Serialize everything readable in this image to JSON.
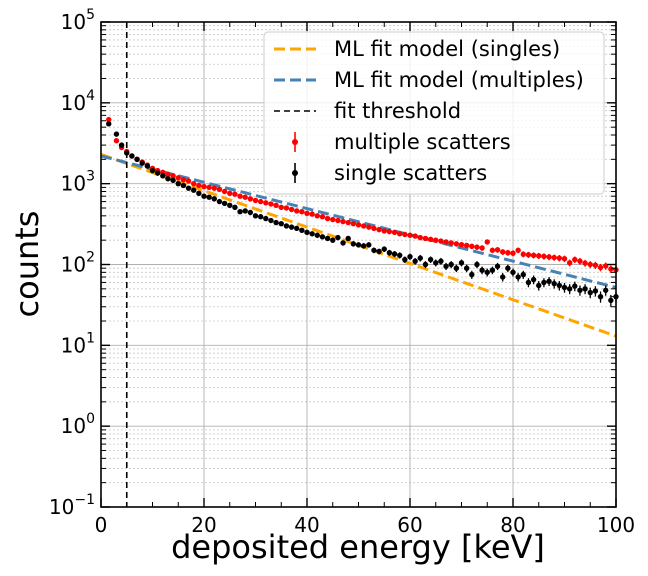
{
  "chart_data": {
    "type": "scatter",
    "xlabel": "deposited energy [keV]",
    "ylabel": "counts",
    "xlim": [
      0,
      100
    ],
    "ylim": [
      0.1,
      100000
    ],
    "y_scale": "log",
    "grid": "major and minor",
    "legend_position": "top-right",
    "x_ticks": [
      {
        "value": 0,
        "label": "0"
      },
      {
        "value": 20,
        "label": "20"
      },
      {
        "value": 40,
        "label": "40"
      },
      {
        "value": 60,
        "label": "60"
      },
      {
        "value": 80,
        "label": "80"
      },
      {
        "value": 100,
        "label": "100"
      }
    ],
    "y_ticks": [
      {
        "value": 0.1,
        "base": "10",
        "exp": "−1"
      },
      {
        "value": 1,
        "base": "10",
        "exp": "0"
      },
      {
        "value": 10,
        "base": "10",
        "exp": "1"
      },
      {
        "value": 100,
        "base": "10",
        "exp": "2"
      },
      {
        "value": 1000,
        "base": "10",
        "exp": "3"
      },
      {
        "value": 10000,
        "base": "10",
        "exp": "4"
      },
      {
        "value": 100000,
        "base": "10",
        "exp": "5"
      }
    ],
    "threshold": {
      "name": "fit threshold",
      "x": 5,
      "color": "#000000"
    },
    "fit_lines": [
      {
        "name": "ML fit model (singles)",
        "color": "#ffa500",
        "x": [
          0,
          100
        ],
        "y": [
          2300,
          13
        ]
      },
      {
        "name": "ML fit model (multiples)",
        "color": "#4682b4",
        "x": [
          0,
          100
        ],
        "y": [
          2200,
          52
        ]
      }
    ],
    "series": [
      {
        "name": "multiple scatters",
        "color": "#ff0000",
        "x": [
          1.5,
          3,
          4,
          5,
          6,
          7,
          8,
          9,
          10,
          11,
          12,
          13,
          14,
          15,
          16,
          17,
          18,
          19,
          20,
          21,
          22,
          23,
          24,
          25,
          26,
          27,
          28,
          29,
          30,
          31,
          32,
          33,
          34,
          35,
          36,
          37,
          38,
          39,
          40,
          41,
          42,
          43,
          44,
          45,
          46,
          47,
          48,
          49,
          50,
          51,
          52,
          53,
          54,
          55,
          56,
          57,
          58,
          59,
          60,
          61,
          62,
          63,
          64,
          65,
          66,
          67,
          68,
          69,
          70,
          71,
          72,
          73,
          74,
          75,
          76,
          77,
          78,
          79,
          80,
          81,
          82,
          83,
          84,
          85,
          86,
          87,
          88,
          89,
          90,
          91,
          92,
          93,
          94,
          95,
          96,
          97,
          98,
          99,
          100
        ],
        "y": [
          6200,
          3400,
          2800,
          2500,
          2200,
          2000,
          1850,
          1700,
          1550,
          1450,
          1380,
          1300,
          1250,
          1180,
          1120,
          1080,
          1000,
          950,
          920,
          900,
          880,
          850,
          800,
          760,
          740,
          700,
          680,
          650,
          620,
          600,
          580,
          560,
          540,
          510,
          500,
          480,
          460,
          450,
          430,
          420,
          400,
          390,
          370,
          360,
          350,
          340,
          330,
          320,
          310,
          300,
          290,
          280,
          270,
          260,
          255,
          250,
          240,
          235,
          230,
          225,
          215,
          210,
          205,
          200,
          195,
          190,
          185,
          180,
          176,
          172,
          168,
          164,
          160,
          190,
          150,
          152,
          143,
          140,
          138,
          150,
          134,
          132,
          130,
          128,
          126,
          124,
          122,
          120,
          118,
          105,
          115,
          110,
          104,
          100,
          98,
          92,
          96,
          88,
          86
        ]
      },
      {
        "name": "single scatters",
        "color": "#000000",
        "x": [
          1.5,
          3,
          4,
          5,
          6,
          7,
          8,
          9,
          10,
          11,
          12,
          13,
          14,
          15,
          16,
          17,
          18,
          19,
          20,
          21,
          22,
          23,
          24,
          25,
          26,
          27,
          28,
          29,
          30,
          31,
          32,
          33,
          34,
          35,
          36,
          37,
          38,
          39,
          40,
          41,
          42,
          43,
          44,
          45,
          46,
          47,
          48,
          49,
          50,
          51,
          52,
          53,
          54,
          55,
          56,
          57,
          58,
          59,
          60,
          61,
          62,
          63,
          64,
          65,
          66,
          67,
          68,
          69,
          70,
          71,
          72,
          73,
          74,
          75,
          76,
          77,
          78,
          79,
          80,
          81,
          82,
          83,
          84,
          85,
          86,
          87,
          88,
          89,
          90,
          91,
          92,
          93,
          94,
          95,
          96,
          97,
          98,
          99,
          100
        ],
        "y": [
          5500,
          4100,
          3000,
          2400,
          2200,
          2000,
          1800,
          1650,
          1450,
          1350,
          1250,
          1150,
          1100,
          1000,
          950,
          880,
          830,
          760,
          700,
          680,
          650,
          600,
          570,
          540,
          510,
          450,
          460,
          440,
          400,
          390,
          370,
          350,
          330,
          320,
          300,
          290,
          280,
          265,
          250,
          240,
          230,
          220,
          210,
          200,
          215,
          185,
          210,
          180,
          175,
          170,
          175,
          150,
          145,
          155,
          140,
          135,
          130,
          115,
          125,
          110,
          120,
          100,
          115,
          105,
          110,
          95,
          100,
          90,
          105,
          90,
          75,
          100,
          85,
          80,
          85,
          95,
          70,
          90,
          80,
          70,
          75,
          60,
          65,
          55,
          60,
          62,
          58,
          55,
          52,
          50,
          54,
          48,
          50,
          45,
          47,
          40,
          48,
          36,
          40
        ]
      }
    ],
    "legend": [
      {
        "label": "ML fit model (singles)"
      },
      {
        "label": "ML fit model (multiples)"
      },
      {
        "label": "fit threshold"
      },
      {
        "label": "multiple scatters"
      },
      {
        "label": "single scatters"
      }
    ]
  }
}
